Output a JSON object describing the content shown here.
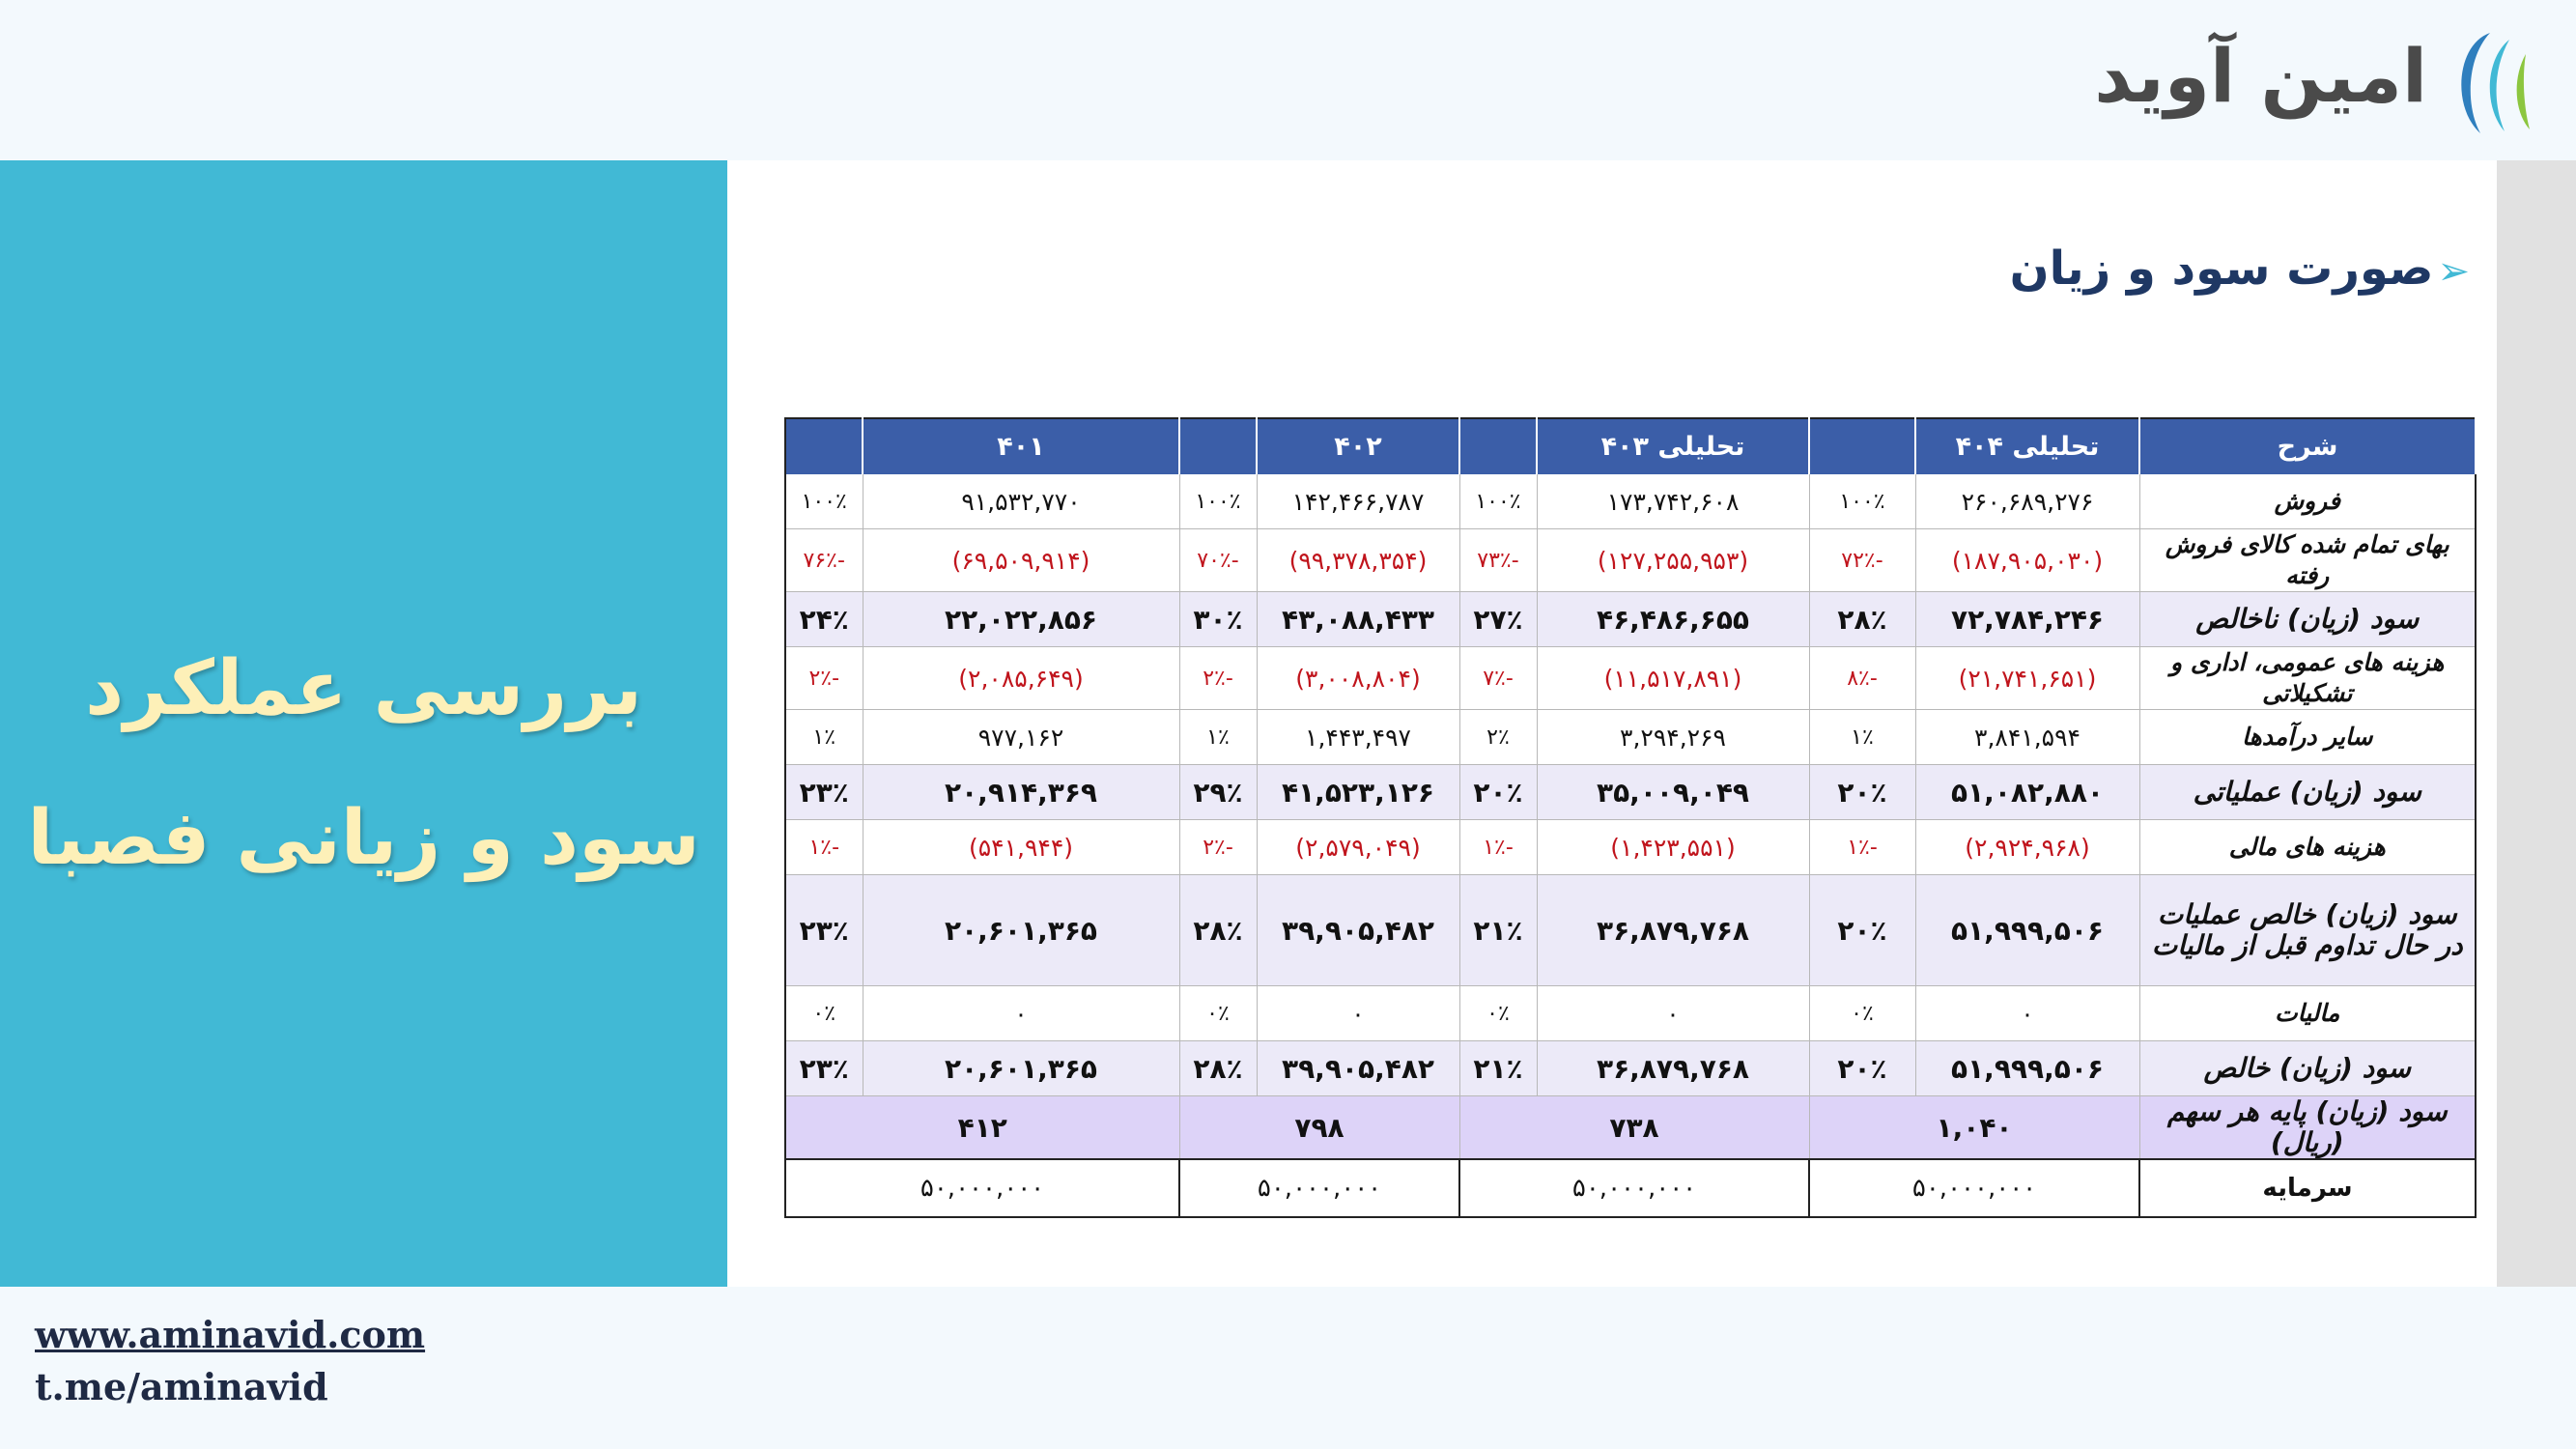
{
  "brand": {
    "name": "امین آوید"
  },
  "hero": {
    "line1": "بررسی عملکرد",
    "line2": "سود و زیانی فصبا"
  },
  "section": {
    "title": "صورت سود و زیان"
  },
  "table": {
    "headers": {
      "desc": "شرح",
      "col1": "تحلیلی ۴۰۴",
      "col2": "تحلیلی ۴۰۳",
      "col3": "۴۰۲",
      "col4": "۴۰۱"
    },
    "rows": [
      {
        "label": "فروش",
        "v": [
          "۲۶۰,۶۸۹,۲۷۶",
          "۱۷۳,۷۴۲,۶۰۸",
          "۱۴۲,۴۶۶,۷۸۷",
          "۹۱,۵۳۲,۷۷۰"
        ],
        "p": [
          "۱۰۰٪",
          "۱۰۰٪",
          "۱۰۰٪",
          "۱۰۰٪"
        ]
      },
      {
        "label": "بهای تمام شده کالای فروش رفته",
        "v": [
          "(۱۸۷,۹۰۵,۰۳۰)",
          "(۱۲۷,۲۵۵,۹۵۳)",
          "(۹۹,۳۷۸,۳۵۴)",
          "(۶۹,۵۰۹,۹۱۴)"
        ],
        "p": [
          "-۷۲٪",
          "-۷۳٪",
          "-۷۰٪",
          "-۷۶٪"
        ]
      },
      {
        "label": "سود (زیان) ناخالص",
        "v": [
          "۷۲,۷۸۴,۲۴۶",
          "۴۶,۴۸۶,۶۵۵",
          "۴۳,۰۸۸,۴۳۳",
          "۲۲,۰۲۲,۸۵۶"
        ],
        "p": [
          "۲۸٪",
          "۲۷٪",
          "۳۰٪",
          "۲۴٪"
        ]
      },
      {
        "label": "هزینه های عمومی، اداری و تشکیلاتی",
        "v": [
          "(۲۱,۷۴۱,۶۵۱)",
          "(۱۱,۵۱۷,۸۹۱)",
          "(۳,۰۰۸,۸۰۴)",
          "(۲,۰۸۵,۶۴۹)"
        ],
        "p": [
          "-۸٪",
          "-۷٪",
          "-۲٪",
          "-۲٪"
        ]
      },
      {
        "label": "سایر درآمدها",
        "v": [
          "۳,۸۴۱,۵۹۴",
          "۳,۲۹۴,۲۶۹",
          "۱,۴۴۳,۴۹۷",
          "۹۷۷,۱۶۲"
        ],
        "p": [
          "۱٪",
          "۲٪",
          "۱٪",
          "۱٪"
        ]
      },
      {
        "label": "سود (زیان) عملیاتی",
        "v": [
          "۵۱,۰۸۲,۸۸۰",
          "۳۵,۰۰۹,۰۴۹",
          "۴۱,۵۲۳,۱۲۶",
          "۲۰,۹۱۴,۳۶۹"
        ],
        "p": [
          "۲۰٪",
          "۲۰٪",
          "۲۹٪",
          "۲۳٪"
        ]
      },
      {
        "label": "هزینه های مالی",
        "v": [
          "(۲,۹۲۴,۹۶۸)",
          "(۱,۴۲۳,۵۵۱)",
          "(۲,۵۷۹,۰۴۹)",
          "(۵۴۱,۹۴۴)"
        ],
        "p": [
          "-۱٪",
          "-۱٪",
          "-۲٪",
          "-۱٪"
        ]
      },
      {
        "label": "سود (زیان) خالص عملیات در حال تداوم قبل از مالیات",
        "v": [
          "۵۱,۹۹۹,۵۰۶",
          "۳۶,۸۷۹,۷۶۸",
          "۳۹,۹۰۵,۴۸۲",
          "۲۰,۶۰۱,۳۶۵"
        ],
        "p": [
          "۲۰٪",
          "۲۱٪",
          "۲۸٪",
          "۲۳٪"
        ]
      },
      {
        "label": "مالیات",
        "v": [
          "۰",
          "۰",
          "۰",
          "۰"
        ],
        "p": [
          "۰٪",
          "۰٪",
          "۰٪",
          "۰٪"
        ]
      },
      {
        "label": "سود (زیان) خالص",
        "v": [
          "۵۱,۹۹۹,۵۰۶",
          "۳۶,۸۷۹,۷۶۸",
          "۳۹,۹۰۵,۴۸۲",
          "۲۰,۶۰۱,۳۶۵"
        ],
        "p": [
          "۲۰٪",
          "۲۱٪",
          "۲۸٪",
          "۲۳٪"
        ]
      }
    ],
    "eps": {
      "label": "سود (زیان)  پایه هر سهم (ریال)",
      "v": [
        "۱,۰۴۰",
        "۷۳۸",
        "۷۹۸",
        "۴۱۲"
      ]
    },
    "capital": {
      "label": "سرمایه",
      "v": [
        "۵۰,۰۰۰,۰۰۰",
        "۵۰,۰۰۰,۰۰۰",
        "۵۰,۰۰۰,۰۰۰",
        "۵۰,۰۰۰,۰۰۰"
      ]
    }
  },
  "footer": {
    "website": "www.aminavid.com",
    "telegram": "t.me/aminavid"
  },
  "colors": {
    "panel": "#41b9d5",
    "header": "#3b5ea8",
    "negative": "#c0141c",
    "title": "#fdf0b8"
  }
}
